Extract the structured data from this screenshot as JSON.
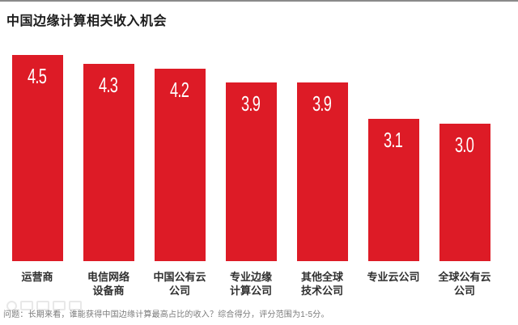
{
  "page": {
    "title": "中国边缘计算相关收入机会",
    "footnote": "问题：长期来看，谁能获得中国边缘计算最高占比的收入？综合得分，评分范围为1-5分。"
  },
  "chart_data": {
    "type": "bar",
    "title": "中国边缘计算相关收入机会",
    "categories": [
      "运营商",
      "电信网络\n设备商",
      "中国公有云\n公司",
      "专业边缘\n计算公司",
      "其他全球\n技术公司",
      "专业云公司",
      "全球公有云\n公司"
    ],
    "values": [
      4.5,
      4.3,
      4.2,
      3.9,
      3.9,
      3.1,
      3.0
    ],
    "value_labels": [
      "4.5",
      "4.3",
      "4.2",
      "3.9",
      "3.9",
      "3.1",
      "3.0"
    ],
    "ylim": [
      0,
      5
    ],
    "xlabel": "",
    "ylabel": "",
    "grid": false,
    "legend": false,
    "bar_color": "#dd1b26",
    "value_label_color": "#ffffff",
    "note": "问题：长期来看，谁能获得中国边缘计算最高占比的收入？综合得分，评分范围为1-5分。"
  },
  "colors": {
    "bar": "#dd1b26",
    "title_text": "#1c1c1c",
    "category_text": "#2f2f2f",
    "footnote_text": "#7a7a7a",
    "top_rule": "#8a8a8a",
    "background": "#ffffff"
  }
}
